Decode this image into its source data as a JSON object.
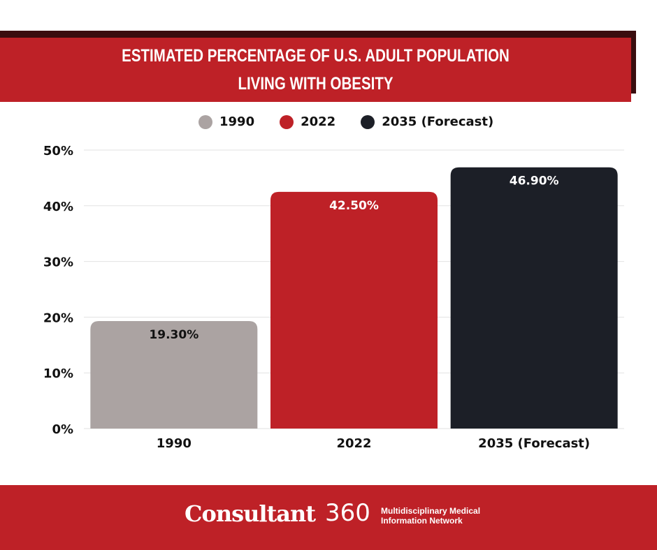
{
  "chart_data": {
    "type": "bar",
    "title": [
      "ESTIMATED PERCENTAGE OF U.S. ADULT POPULATION",
      "LIVING WITH OBESITY"
    ],
    "categories": [
      "1990",
      "2022",
      "2035 (Forecast)"
    ],
    "values": [
      19.3,
      42.5,
      46.9
    ],
    "data_labels": [
      "19.30%",
      "42.50%",
      "46.90%"
    ],
    "colors": [
      "#aba3a2",
      "#be2127",
      "#1c1f27"
    ],
    "legend": [
      "1990",
      "2022",
      "2035 (Forecast)"
    ],
    "legend_position": "top",
    "ylim": [
      0,
      50
    ],
    "yticks": [
      0,
      10,
      20,
      30,
      40,
      50
    ],
    "ytick_labels": [
      "0%",
      "10%",
      "20%",
      "30%",
      "40%",
      "50%"
    ],
    "grid": true
  },
  "footer": {
    "brand": "Consultant",
    "brand_num": "360",
    "tagline1": "Multidisciplinary Medical",
    "tagline2": "Information Network"
  }
}
